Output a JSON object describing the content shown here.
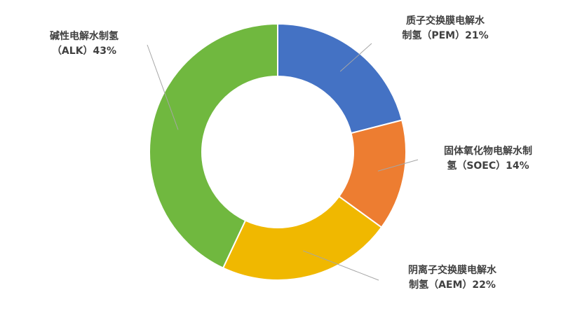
{
  "chart_data": {
    "type": "pie",
    "donut": true,
    "title": "",
    "slices": [
      {
        "label_line1": "质子交换膜电解水",
        "label_line2": "制氢（PEM）21%",
        "value": 21,
        "color": "#4472C4"
      },
      {
        "label_line1": "固体氧化物电解水制",
        "label_line2": "氢（SOEC）14%",
        "value": 14,
        "color": "#ED7D31"
      },
      {
        "label_line1": "阴离子交换膜电解水",
        "label_line2": "制氢（AEM）22%",
        "value": 22,
        "color": "#F0B800"
      },
      {
        "label_line1": "碱性电解水制氢",
        "label_line2": "（ALK）43%",
        "value": 43,
        "color": "#70B83F"
      }
    ]
  }
}
